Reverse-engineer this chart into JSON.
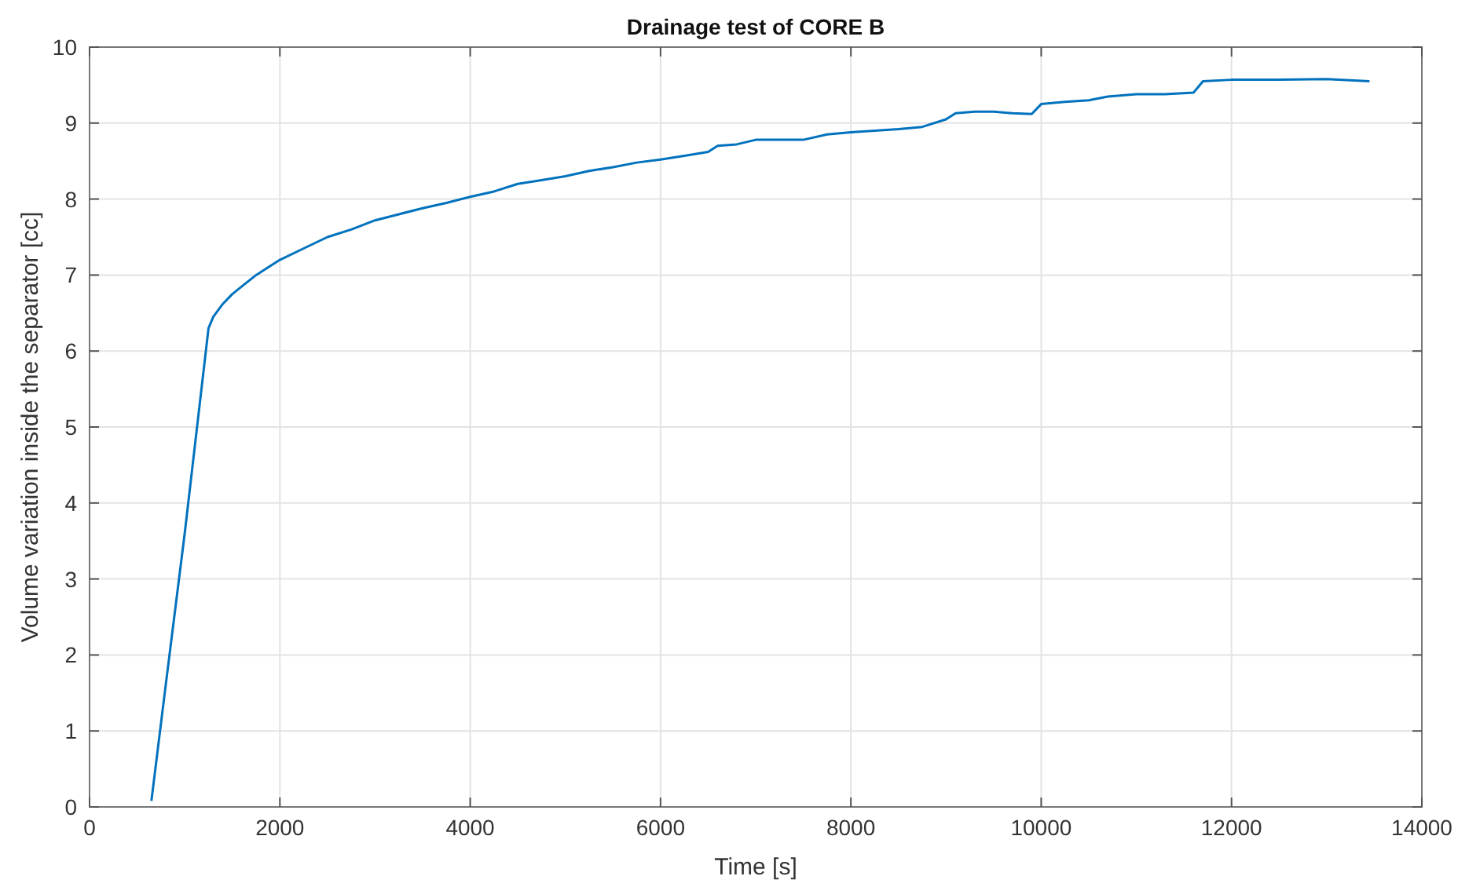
{
  "chart_data": {
    "type": "line",
    "title": "Drainage test of CORE B",
    "xlabel": "Time [s]",
    "ylabel": "Volume variation inside the separator [cc]",
    "xlim": [
      0,
      14000
    ],
    "xticks": [
      0,
      2000,
      4000,
      6000,
      8000,
      10000,
      12000,
      14000
    ],
    "ylim": [
      0,
      10
    ],
    "yticks": [
      0,
      1,
      2,
      3,
      4,
      5,
      6,
      7,
      8,
      9,
      10
    ],
    "grid": true,
    "series": [
      {
        "color": "#0072bd",
        "x": [
          650,
          800,
          1000,
          1250,
          1300,
          1400,
          1500,
          1600,
          1750,
          1900,
          2000,
          2250,
          2500,
          2750,
          3000,
          3250,
          3500,
          3750,
          4000,
          4250,
          4500,
          4750,
          5000,
          5250,
          5500,
          5750,
          6000,
          6250,
          6500,
          6600,
          6800,
          7000,
          7250,
          7500,
          7750,
          8000,
          8250,
          8500,
          8750,
          9000,
          9100,
          9300,
          9500,
          9700,
          9900,
          10000,
          10250,
          10500,
          10700,
          11000,
          11300,
          11600,
          11700,
          12000,
          12500,
          13000,
          13450
        ],
        "values": [
          0.08,
          1.6,
          3.6,
          6.3,
          6.45,
          6.62,
          6.75,
          6.85,
          7.0,
          7.12,
          7.2,
          7.35,
          7.5,
          7.6,
          7.72,
          7.8,
          7.88,
          7.95,
          8.03,
          8.1,
          8.2,
          8.25,
          8.3,
          8.37,
          8.42,
          8.48,
          8.52,
          8.57,
          8.62,
          8.7,
          8.72,
          8.78,
          8.78,
          8.78,
          8.85,
          8.88,
          8.9,
          8.92,
          8.95,
          9.05,
          9.13,
          9.15,
          9.15,
          9.13,
          9.12,
          9.25,
          9.28,
          9.3,
          9.35,
          9.38,
          9.38,
          9.4,
          9.55,
          9.57,
          9.57,
          9.58,
          9.55
        ]
      }
    ]
  }
}
